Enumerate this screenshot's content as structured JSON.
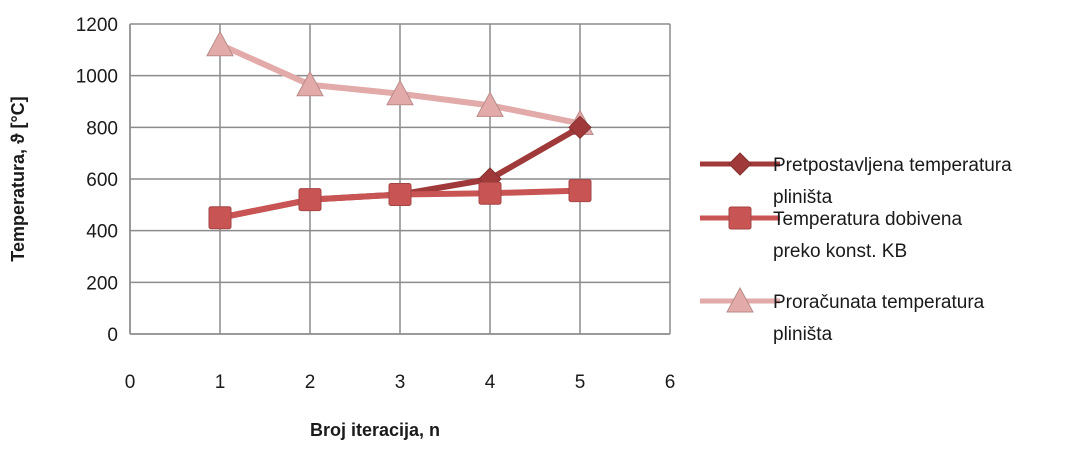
{
  "chart_data": {
    "type": "line",
    "title": "",
    "xlabel": "Broj iteracija, n",
    "ylabel": "Temperatura, ϑ [°C]",
    "xlim": [
      0,
      6
    ],
    "ylim": [
      0,
      1200
    ],
    "xticks": [
      0,
      1,
      2,
      3,
      4,
      5,
      6
    ],
    "yticks": [
      0,
      200,
      400,
      600,
      800,
      1000,
      1200
    ],
    "grid": true,
    "legend_position": "right",
    "series": [
      {
        "name": "Pretpostavljena temperatura pliništa",
        "legend_lines": [
          "Pretpostavljena temperatura",
          "pliništa"
        ],
        "marker": "diamond",
        "color": "#a03a3a",
        "x": [
          1,
          2,
          3,
          4,
          5
        ],
        "y": [
          450,
          520,
          540,
          600,
          800
        ]
      },
      {
        "name": "Temperatura dobivena preko konst. KB",
        "legend_lines": [
          "Temperatura dobivena",
          "preko konst. KB"
        ],
        "marker": "square",
        "color": "#c85454",
        "x": [
          1,
          2,
          3,
          4,
          5
        ],
        "y": [
          450,
          520,
          540,
          545,
          555
        ]
      },
      {
        "name": "Proračunata temperatura pliništa",
        "legend_lines": [
          "Proračunata temperatura",
          "pliništa"
        ],
        "marker": "triangle",
        "color": "#e2aaa8",
        "x": [
          1,
          2,
          3,
          4,
          5
        ],
        "y": [
          1120,
          965,
          930,
          885,
          815
        ]
      }
    ]
  }
}
